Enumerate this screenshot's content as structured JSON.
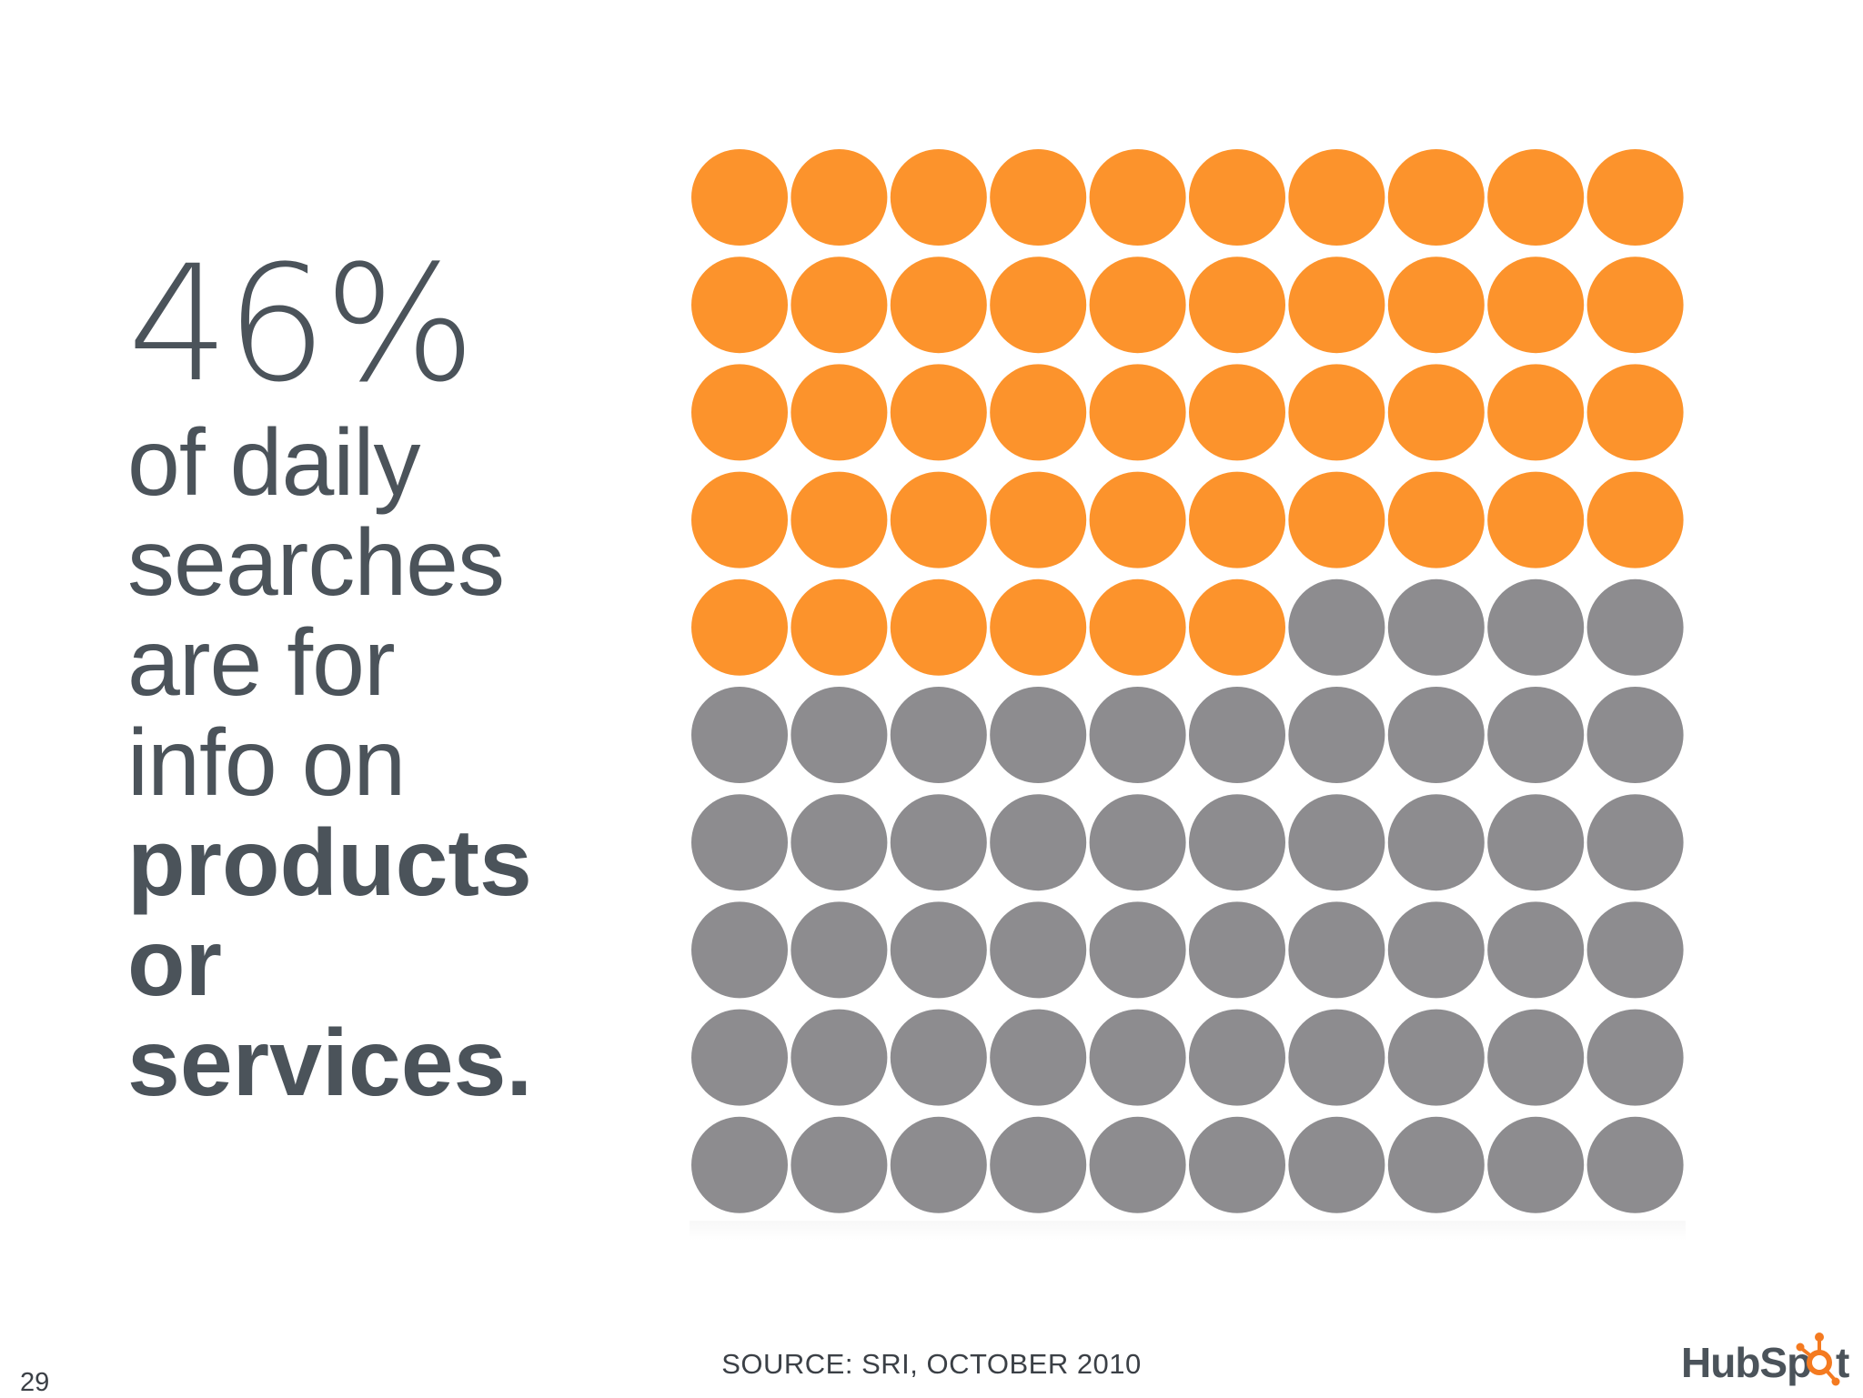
{
  "headline": {
    "percent": "46%",
    "lines": [
      "of daily",
      "searches",
      "are for",
      "info on"
    ],
    "bold_lines": [
      "products",
      "or",
      "services."
    ]
  },
  "chart_data": {
    "type": "waffle",
    "total": 100,
    "highlighted": 46,
    "rows": 10,
    "columns": 10,
    "colors": {
      "highlighted": "#fc932c",
      "rest": "#8d8c8f"
    }
  },
  "footer": {
    "source": "SOURCE: SRI, OCTOBER 2010",
    "page_number": "29"
  },
  "logo": {
    "text": "HubSpot",
    "color_text": "#4b535a",
    "color_accent": "#f47a20"
  }
}
